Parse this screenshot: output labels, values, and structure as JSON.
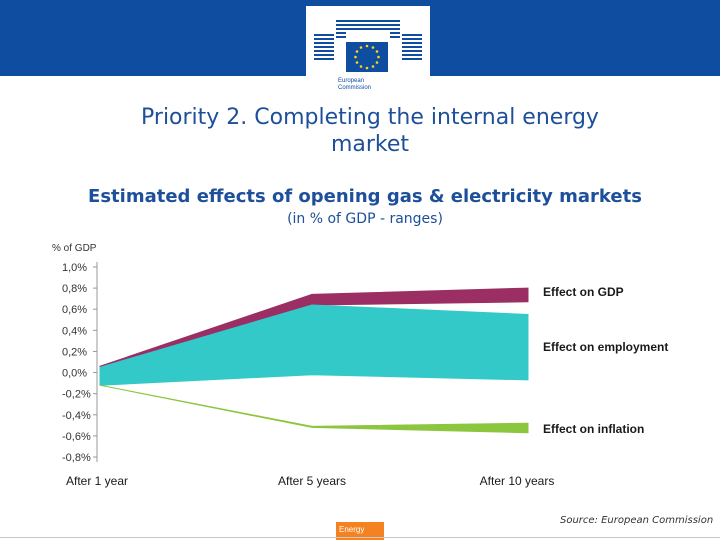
{
  "header": {
    "org_line1": "European",
    "org_line2": "Commission",
    "brand_color": "#0f4da0"
  },
  "slide": {
    "title_line1": "Priority 2. Completing the internal energy",
    "title_line2": "market"
  },
  "chart_data": {
    "type": "area",
    "title": "Estimated effects of opening gas & electricity markets",
    "subtitle": "(in % of GDP - ranges)",
    "ylabel": "% of GDP",
    "xlabel": "",
    "categories": [
      "After 1 year",
      "After 5 years",
      "After 10 years"
    ],
    "x": [
      1,
      5,
      10
    ],
    "ylim": [
      -0.8,
      1.0
    ],
    "yticks": [
      1.0,
      0.8,
      0.6,
      0.4,
      0.2,
      0.0,
      -0.2,
      -0.4,
      -0.6,
      -0.8
    ],
    "ytick_labels": [
      "1,0%",
      "0,8%",
      "0,6%",
      "0,4%",
      "0,2%",
      "0,0%",
      "-0,2%",
      "-0,4%",
      "-0,6%",
      "-0,8%"
    ],
    "grid": false,
    "legend": "right, inline labels",
    "series": [
      {
        "name": "Effect on GDP",
        "color": "#9b2f63",
        "x": [
          1,
          5,
          10
        ],
        "lower": [
          0.05,
          0.64,
          0.67
        ],
        "upper": [
          0.06,
          0.74,
          0.8
        ]
      },
      {
        "name": "Effect on employment",
        "color": "#33c9c9",
        "x": [
          1,
          5,
          10
        ],
        "lower": [
          -0.12,
          -0.02,
          -0.07
        ],
        "upper": [
          0.05,
          0.64,
          0.55
        ]
      },
      {
        "name": "Effect on inflation",
        "color": "#8cc63f",
        "x": [
          1,
          5,
          10
        ],
        "lower": [
          -0.12,
          -0.52,
          -0.57
        ],
        "upper": [
          -0.12,
          -0.51,
          -0.48
        ]
      }
    ]
  },
  "source_text": "Source: European Commission",
  "footer": {
    "section_label": "Energy",
    "accent_color": "#f58220"
  }
}
